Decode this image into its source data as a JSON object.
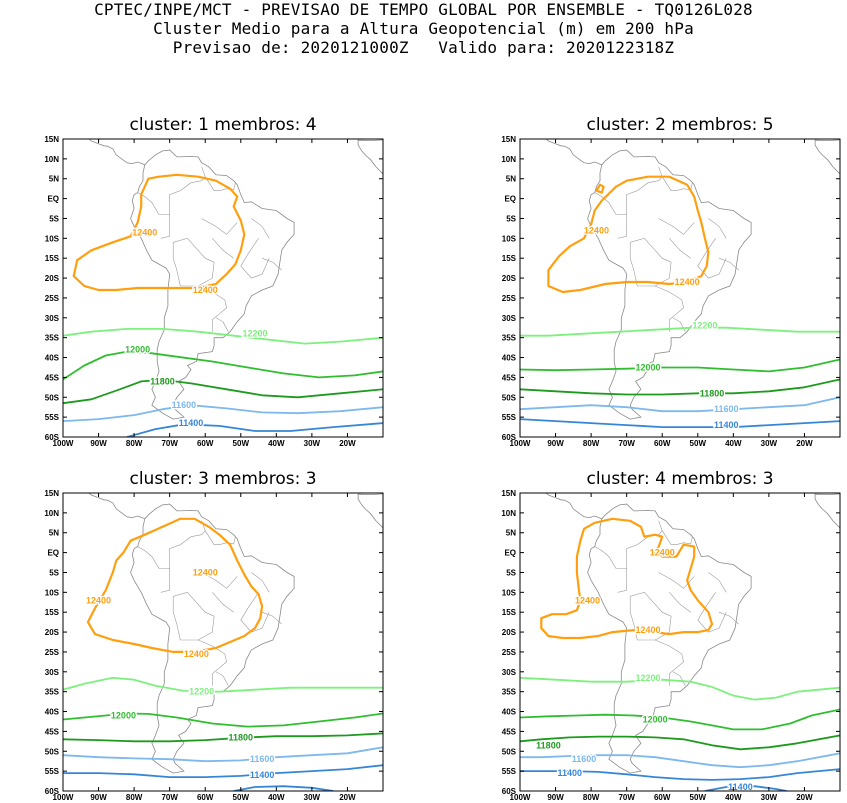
{
  "header": {
    "line1": "CPTEC/INPE/MCT - PREVISAO DE TEMPO GLOBAL POR ENSEMBLE - TQ0126L028",
    "line2": "Cluster Medio para a Altura Geopotencial (m) em 200 hPa",
    "line3": "Previsao de: 2020121000Z   Valido para: 2020122318Z"
  },
  "axes": {
    "lat_labels": [
      "15N",
      "10N",
      "5N",
      "EQ",
      "5S",
      "10S",
      "15S",
      "20S",
      "25S",
      "30S",
      "35S",
      "40S",
      "45S",
      "50S",
      "55S",
      "60S"
    ],
    "lon_labels": [
      "100W",
      "90W",
      "80W",
      "70W",
      "60W",
      "50W",
      "40W",
      "30W",
      "20W"
    ]
  },
  "contour_colors": {
    "12400": "#ff9f0f",
    "12200": "#7ef07e",
    "12000": "#2fbe2f",
    "11800": "#1e9a1e",
    "11600": "#7eb8ee",
    "11400": "#3686d8"
  },
  "panels": [
    {
      "title": "cluster: 1   membros: 4",
      "labels": [
        {
          "text": "12400",
          "lon": -77,
          "lat": -8.5,
          "level": "12400"
        },
        {
          "text": "12400",
          "lon": -60,
          "lat": -23,
          "level": "12400"
        },
        {
          "text": "12200",
          "lon": -46,
          "lat": -34,
          "level": "12200"
        },
        {
          "text": "12000",
          "lon": -79,
          "lat": -38,
          "level": "12000"
        },
        {
          "text": "11800",
          "lon": -72,
          "lat": -46,
          "level": "11800"
        },
        {
          "text": "11600",
          "lon": -66,
          "lat": -52,
          "level": "11600"
        },
        {
          "text": "11400",
          "lon": -64,
          "lat": -56.5,
          "level": "11400"
        }
      ]
    },
    {
      "title": "cluster: 2   membros: 5",
      "labels": [
        {
          "text": "12400",
          "lon": -78.5,
          "lat": -8,
          "level": "12400"
        },
        {
          "text": "12400",
          "lon": -53,
          "lat": -21,
          "level": "12400"
        },
        {
          "text": "12200",
          "lon": -48,
          "lat": -32,
          "level": "12200"
        },
        {
          "text": "12000",
          "lon": -64,
          "lat": -42.5,
          "level": "12000"
        },
        {
          "text": "11800",
          "lon": -46,
          "lat": -49,
          "level": "11800"
        },
        {
          "text": "11600",
          "lon": -42,
          "lat": -53,
          "level": "11600"
        },
        {
          "text": "11400",
          "lon": -42,
          "lat": -57,
          "level": "11400"
        }
      ]
    },
    {
      "title": "cluster: 3   membros: 3",
      "labels": [
        {
          "text": "12400",
          "lon": -60,
          "lat": -5,
          "level": "12400"
        },
        {
          "text": "12400",
          "lon": -90,
          "lat": -12,
          "level": "12400"
        },
        {
          "text": "12400",
          "lon": -62.5,
          "lat": -25.5,
          "level": "12400"
        },
        {
          "text": "12200",
          "lon": -61,
          "lat": -35,
          "level": "12200"
        },
        {
          "text": "12000",
          "lon": -83,
          "lat": -41,
          "level": "12000"
        },
        {
          "text": "11800",
          "lon": -50,
          "lat": -46.5,
          "level": "11800"
        },
        {
          "text": "11600",
          "lon": -44,
          "lat": -52,
          "level": "11600"
        },
        {
          "text": "11400",
          "lon": -44,
          "lat": -56,
          "level": "11400"
        }
      ]
    },
    {
      "title": "cluster: 4   membros: 3",
      "labels": [
        {
          "text": "12400",
          "lon": -60,
          "lat": 0,
          "level": "12400"
        },
        {
          "text": "12400",
          "lon": -81,
          "lat": -12,
          "level": "12400"
        },
        {
          "text": "12400",
          "lon": -64,
          "lat": -19.5,
          "level": "12400"
        },
        {
          "text": "12200",
          "lon": -64,
          "lat": -31.5,
          "level": "12200"
        },
        {
          "text": "12000",
          "lon": -62,
          "lat": -42,
          "level": "12000"
        },
        {
          "text": "11800",
          "lon": -92,
          "lat": -48.5,
          "level": "11800"
        },
        {
          "text": "11600",
          "lon": -82,
          "lat": -52,
          "level": "11600"
        },
        {
          "text": "11400",
          "lon": -86,
          "lat": -55.5,
          "level": "11400"
        },
        {
          "text": "11400",
          "lon": -38,
          "lat": -59,
          "level": "11400"
        }
      ]
    }
  ]
}
